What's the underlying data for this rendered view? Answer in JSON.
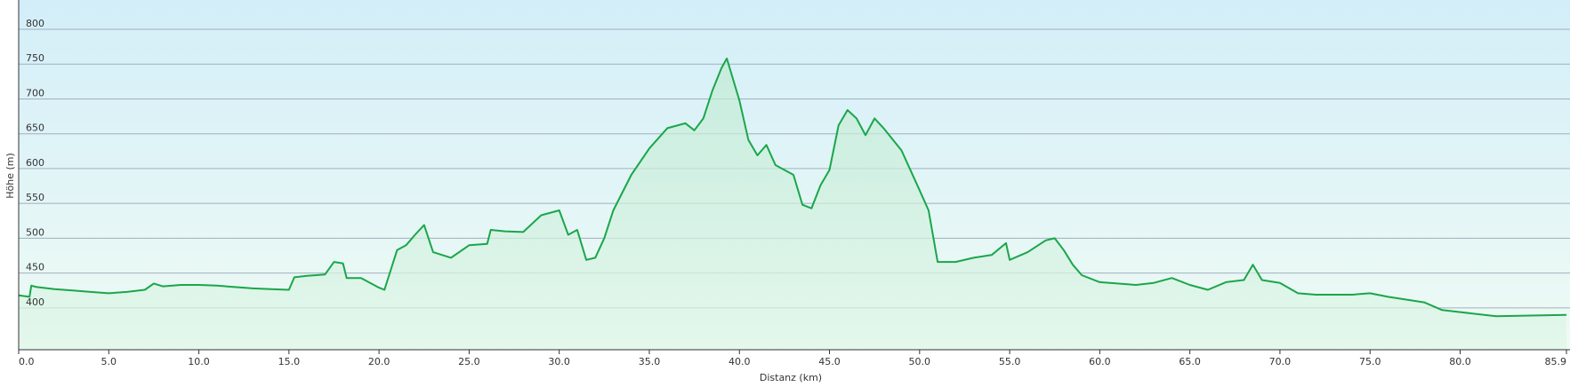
{
  "chart_data": {
    "type": "area",
    "x_label": "Distanz  (km)",
    "y_label": "Höhe (m)",
    "color": "#1aa64a",
    "grid": true,
    "xlim": [
      0,
      85.9
    ],
    "ylim": [
      340,
      842
    ],
    "xticks": [
      {
        "value": 0,
        "label": "0.0"
      },
      {
        "value": 5,
        "label": "5.0"
      },
      {
        "value": 10,
        "label": "10.0"
      },
      {
        "value": 15,
        "label": "15.0"
      },
      {
        "value": 20,
        "label": "20.0"
      },
      {
        "value": 25,
        "label": "25.0"
      },
      {
        "value": 30,
        "label": "30.0"
      },
      {
        "value": 35,
        "label": "35.0"
      },
      {
        "value": 40,
        "label": "40.0"
      },
      {
        "value": 45,
        "label": "45.0"
      },
      {
        "value": 50,
        "label": "50.0"
      },
      {
        "value": 55,
        "label": "55.0"
      },
      {
        "value": 60,
        "label": "60.0"
      },
      {
        "value": 65,
        "label": "65.0"
      },
      {
        "value": 70,
        "label": "70.0"
      },
      {
        "value": 75,
        "label": "75.0"
      },
      {
        "value": 80,
        "label": "80.0"
      },
      {
        "value": 85.9,
        "label": "85.9"
      }
    ],
    "yticks": [
      400,
      450,
      500,
      550,
      600,
      650,
      700,
      750,
      800
    ],
    "x": [
      0,
      0.6,
      0.7,
      1,
      2,
      3,
      4,
      5,
      6,
      7,
      7.5,
      8,
      9,
      10,
      11,
      12,
      13,
      14,
      15,
      15.3,
      16,
      17,
      17.5,
      18,
      18.2,
      19,
      20,
      20.3,
      21,
      21.5,
      22,
      22.5,
      23,
      24,
      25,
      26,
      26.2,
      27,
      28,
      29,
      30,
      30.5,
      31,
      31.5,
      32,
      32.5,
      33,
      34,
      35,
      36,
      37,
      37.5,
      38,
      38.5,
      39,
      39.3,
      40,
      40.5,
      41,
      41.5,
      42,
      43,
      43.5,
      44,
      44.5,
      45,
      45.5,
      46,
      46.5,
      47,
      47.5,
      48,
      49,
      50,
      50.5,
      51,
      52,
      53,
      54,
      54.8,
      55,
      56,
      57,
      57.5,
      58,
      58.5,
      59,
      60,
      62,
      63,
      64,
      65,
      66,
      67,
      68,
      68.5,
      69,
      70,
      71,
      72,
      74,
      75,
      76,
      78,
      79,
      80,
      82,
      85.9
    ],
    "series": [
      {
        "name": "Höhe",
        "values": [
          418,
          416,
          432,
          430,
          427,
          425,
          423,
          421,
          423,
          426,
          435,
          431,
          433,
          433,
          432,
          430,
          428,
          427,
          426,
          444,
          446,
          448,
          466,
          464,
          443,
          443,
          429,
          426,
          483,
          490,
          505,
          519,
          480,
          472,
          490,
          492,
          512,
          510,
          509,
          533,
          540,
          505,
          512,
          469,
          472,
          500,
          540,
          591,
          629,
          658,
          665,
          655,
          672,
          712,
          744,
          758,
          698,
          641,
          619,
          634,
          605,
          591,
          548,
          543,
          576,
          598,
          662,
          684,
          672,
          648,
          672,
          658,
          626,
          569,
          540,
          466,
          466,
          472,
          476,
          493,
          469,
          480,
          497,
          500,
          483,
          462,
          447,
          437,
          433,
          436,
          443,
          433,
          426,
          437,
          440,
          462,
          440,
          436,
          421,
          419,
          419,
          421,
          416,
          408,
          397,
          394,
          388,
          390
        ]
      }
    ]
  }
}
